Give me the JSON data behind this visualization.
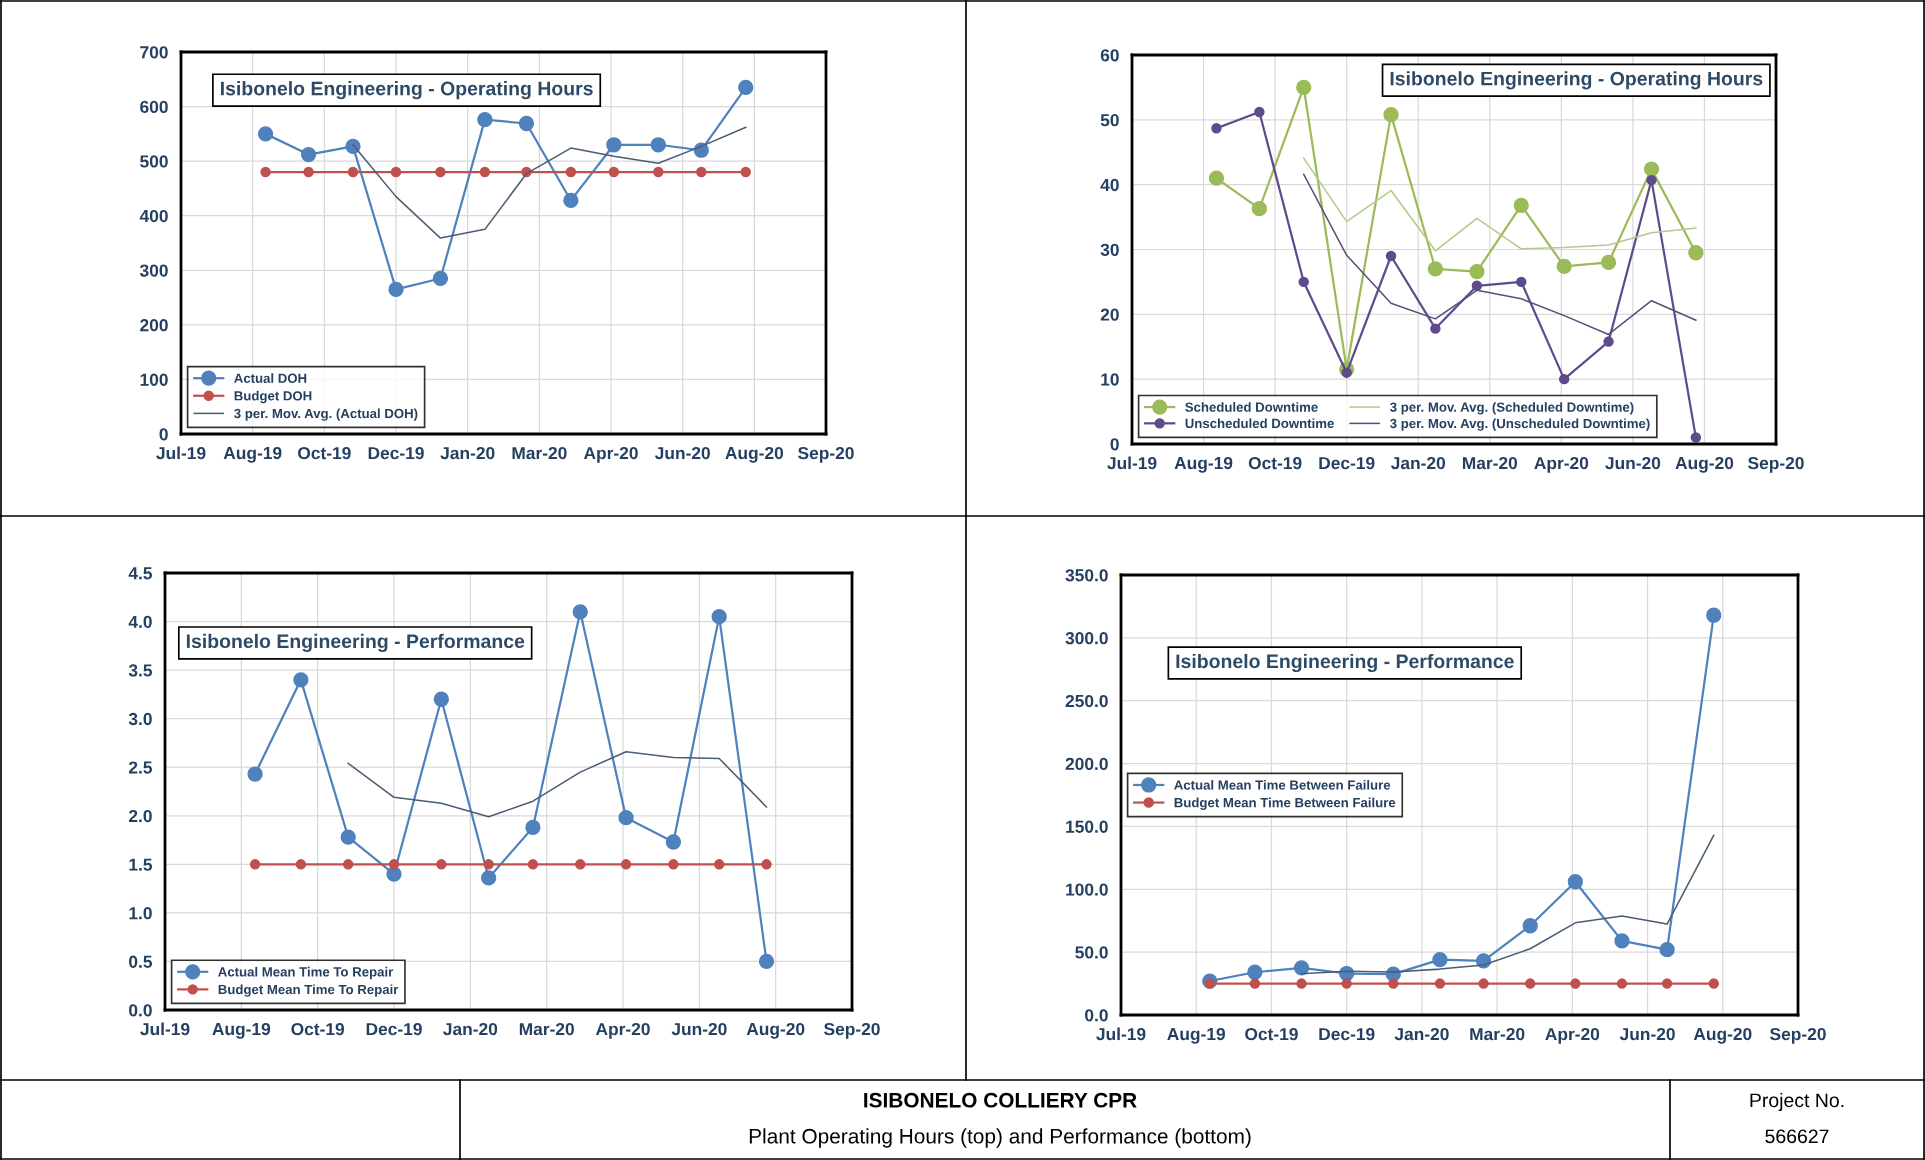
{
  "chart_data": [
    {
      "type": "line",
      "title": "Isibonelo Engineering - Operating Hours",
      "x": [
        "2019-09",
        "2019-10",
        "2019-11",
        "2019-12",
        "2020-01",
        "2020-02",
        "2020-03",
        "2020-04",
        "2020-05",
        "2020-06",
        "2020-07",
        "2020-08"
      ],
      "series": [
        {
          "name": "Actual DOH",
          "color": "#4f81bd",
          "marker": "circle",
          "values": [
            550,
            512,
            527,
            265,
            285,
            576,
            569,
            428,
            530,
            530,
            520,
            635
          ]
        },
        {
          "name": "Budget DOH",
          "color": "#c0504d",
          "marker": "circle",
          "values": [
            480,
            480,
            480,
            480,
            480,
            480,
            480,
            480,
            480,
            480,
            480,
            480
          ]
        },
        {
          "name": "3 per. Mov. Avg. (Actual DOH)",
          "color": "#4a5d73",
          "marker": "none",
          "values": [
            null,
            null,
            530,
            435,
            359,
            375,
            477,
            524,
            509,
            496,
            527,
            562
          ]
        }
      ],
      "xlim": [
        "2019-07-04",
        "2020-09-26"
      ],
      "xticks": [
        {
          "value": "2019-07-04",
          "label": "Jul-19"
        },
        {
          "value": "2019-08-23",
          "label": "Aug-19"
        },
        {
          "value": "2019-10-12",
          "label": "Oct-19"
        },
        {
          "value": "2019-12-01",
          "label": "Dec-19"
        },
        {
          "value": "2020-01-20",
          "label": "Jan-20"
        },
        {
          "value": "2020-03-10",
          "label": "Mar-20"
        },
        {
          "value": "2020-04-29",
          "label": "Apr-20"
        },
        {
          "value": "2020-06-18",
          "label": "Jun-20"
        },
        {
          "value": "2020-08-07",
          "label": "Aug-20"
        },
        {
          "value": "2020-09-26",
          "label": "Sep-20"
        }
      ],
      "ylim": [
        0,
        700
      ],
      "yticks": [
        0,
        100,
        200,
        300,
        400,
        500,
        600,
        700
      ],
      "grid": true,
      "legend": "bottom left",
      "line_style": "solid"
    },
    {
      "type": "line",
      "title": "Isibonelo Engineering - Operating Hours",
      "x": [
        "2019-09",
        "2019-10",
        "2019-11",
        "2019-12",
        "2020-01",
        "2020-02",
        "2020-03",
        "2020-04",
        "2020-05",
        "2020-06",
        "2020-07",
        "2020-08"
      ],
      "series": [
        {
          "name": "Scheduled Downtime",
          "color": "#9bbb59",
          "marker": "circle",
          "values": [
            41,
            36.3,
            55,
            11.5,
            50.8,
            27,
            26.6,
            36.8,
            27.4,
            28,
            42.4,
            29.5
          ]
        },
        {
          "name": "Unscheduled Downtime",
          "color": "#5f4b8b",
          "marker": "circle",
          "values": [
            48.7,
            51.2,
            25,
            11,
            29,
            17.8,
            24.4,
            25,
            10,
            15.8,
            40.7,
            1
          ]
        },
        {
          "name": "3 per. Mov. Avg. (Scheduled Downtime)",
          "color": "#b5c98a",
          "marker": "none",
          "values": [
            null,
            null,
            44.1,
            34.3,
            39.1,
            29.8,
            34.8,
            30.1,
            30.3,
            30.7,
            32.6,
            33.3
          ]
        },
        {
          "name": "3 per. Mov. Avg. (Unscheduled Downtime)",
          "color": "#5a4e7a",
          "marker": "none",
          "values": [
            null,
            null,
            41.6,
            29.1,
            21.7,
            19.3,
            23.7,
            22.4,
            19.8,
            16.9,
            22.1,
            19.1
          ]
        }
      ],
      "xlim": [
        "2019-07-04",
        "2020-09-26"
      ],
      "xticks": [
        {
          "value": "2019-07-04",
          "label": "Jul-19"
        },
        {
          "value": "2019-08-23",
          "label": "Aug-19"
        },
        {
          "value": "2019-10-12",
          "label": "Oct-19"
        },
        {
          "value": "2019-12-01",
          "label": "Dec-19"
        },
        {
          "value": "2020-01-20",
          "label": "Jan-20"
        },
        {
          "value": "2020-03-10",
          "label": "Mar-20"
        },
        {
          "value": "2020-04-29",
          "label": "Apr-20"
        },
        {
          "value": "2020-06-18",
          "label": "Jun-20"
        },
        {
          "value": "2020-08-07",
          "label": "Aug-20"
        },
        {
          "value": "2020-09-26",
          "label": "Sep-20"
        }
      ],
      "ylim": [
        0,
        60
      ],
      "yticks": [
        0,
        10,
        20,
        30,
        40,
        50,
        60
      ],
      "grid": true,
      "legend": "bottom left",
      "line_style": "solid"
    },
    {
      "type": "line",
      "title": "Isibonelo Engineering - Performance",
      "x": [
        "2019-09",
        "2019-10",
        "2019-11",
        "2019-12",
        "2020-01",
        "2020-02",
        "2020-03",
        "2020-04",
        "2020-05",
        "2020-06",
        "2020-07",
        "2020-08"
      ],
      "series": [
        {
          "name": "Actual Mean Time To Repair",
          "color": "#4f81bd",
          "marker": "circle",
          "values": [
            2.43,
            3.4,
            1.78,
            1.4,
            3.2,
            1.36,
            1.88,
            4.1,
            1.98,
            1.73,
            4.05,
            0.5
          ]
        },
        {
          "name": "Budget Mean Time To Repair",
          "color": "#c0504d",
          "marker": "circle",
          "values": [
            1.5,
            1.5,
            1.5,
            1.5,
            1.5,
            1.5,
            1.5,
            1.5,
            1.5,
            1.5,
            1.5,
            1.5
          ]
        },
        {
          "color": "#4a5d73",
          "marker": "none",
          "values": [
            null,
            null,
            2.54,
            2.19,
            2.13,
            1.99,
            2.15,
            2.45,
            2.66,
            2.6,
            2.59,
            2.09
          ]
        }
      ],
      "xlim": [
        "2019-07-04",
        "2020-09-26"
      ],
      "xticks": [
        {
          "value": "2019-07-04",
          "label": "Jul-19"
        },
        {
          "value": "2019-08-23",
          "label": "Aug-19"
        },
        {
          "value": "2019-10-12",
          "label": "Oct-19"
        },
        {
          "value": "2019-12-01",
          "label": "Dec-19"
        },
        {
          "value": "2020-01-20",
          "label": "Jan-20"
        },
        {
          "value": "2020-03-10",
          "label": "Mar-20"
        },
        {
          "value": "2020-04-29",
          "label": "Apr-20"
        },
        {
          "value": "2020-06-18",
          "label": "Jun-20"
        },
        {
          "value": "2020-08-07",
          "label": "Aug-20"
        },
        {
          "value": "2020-09-26",
          "label": "Sep-20"
        }
      ],
      "ylim": [
        0,
        4.5
      ],
      "yticks": [
        {
          "value": 0,
          "label": "0.0"
        },
        {
          "value": 0.5,
          "label": "0.5"
        },
        {
          "value": 1,
          "label": "1.0"
        },
        {
          "value": 1.5,
          "label": "1.5"
        },
        {
          "value": 2,
          "label": "2.0"
        },
        {
          "value": 2.5,
          "label": "2.5"
        },
        {
          "value": 3,
          "label": "3.0"
        },
        {
          "value": 3.5,
          "label": "3.5"
        },
        {
          "value": 4,
          "label": "4.0"
        },
        {
          "value": 4.5,
          "label": "4.5"
        }
      ],
      "grid": true,
      "legend": "bottom left",
      "line_style": "solid"
    },
    {
      "type": "line",
      "title": "Isibonelo Engineering - Performance",
      "x": [
        "2019-09",
        "2019-10",
        "2019-11",
        "2019-12",
        "2020-01",
        "2020-02",
        "2020-03",
        "2020-04",
        "2020-05",
        "2020-06",
        "2020-07",
        "2020-08"
      ],
      "series": [
        {
          "name": "Actual Mean Time Between Failure",
          "color": "#4f81bd",
          "marker": "circle",
          "values": [
            27,
            34,
            37.5,
            33,
            32.5,
            44,
            43,
            71,
            106,
            59,
            52,
            318
          ]
        },
        {
          "name": "Budget Mean Time Between Failure",
          "color": "#c0504d",
          "marker": "circle",
          "values": [
            25,
            25,
            25,
            25,
            25,
            25,
            25,
            25,
            25,
            25,
            25,
            25
          ]
        },
        {
          "color": "#4a5d73",
          "marker": "none",
          "values": [
            null,
            null,
            32.8,
            34.8,
            34.2,
            36.5,
            39.8,
            52.7,
            73.3,
            78.7,
            72.3,
            143
          ]
        }
      ],
      "xlim": [
        "2019-07-04",
        "2020-09-26"
      ],
      "xticks": [
        {
          "value": "2019-07-04",
          "label": "Jul-19"
        },
        {
          "value": "2019-08-23",
          "label": "Aug-19"
        },
        {
          "value": "2019-10-12",
          "label": "Oct-19"
        },
        {
          "value": "2019-12-01",
          "label": "Dec-19"
        },
        {
          "value": "2020-01-20",
          "label": "Jan-20"
        },
        {
          "value": "2020-03-10",
          "label": "Mar-20"
        },
        {
          "value": "2020-04-29",
          "label": "Apr-20"
        },
        {
          "value": "2020-06-18",
          "label": "Jun-20"
        },
        {
          "value": "2020-08-07",
          "label": "Aug-20"
        },
        {
          "value": "2020-09-26",
          "label": "Sep-20"
        }
      ],
      "ylim": [
        0,
        350
      ],
      "yticks": [
        {
          "value": 0,
          "label": "0.0"
        },
        {
          "value": 50,
          "label": "50.0"
        },
        {
          "value": 100,
          "label": "100.0"
        },
        {
          "value": 150,
          "label": "150.0"
        },
        {
          "value": 200,
          "label": "200.0"
        },
        {
          "value": 250,
          "label": "250.0"
        },
        {
          "value": 300,
          "label": "300.0"
        },
        {
          "value": 350,
          "label": "350.0"
        }
      ],
      "grid": true,
      "legend": "center left",
      "line_style": "solid"
    },
    {
      "type": "other",
      "title": "ISIBONELO COLLIERY CPR",
      "subtitle": "Plant Operating Hours (top) and Performance (bottom)",
      "annotations": [
        "Project No.",
        "566627"
      ]
    }
  ]
}
